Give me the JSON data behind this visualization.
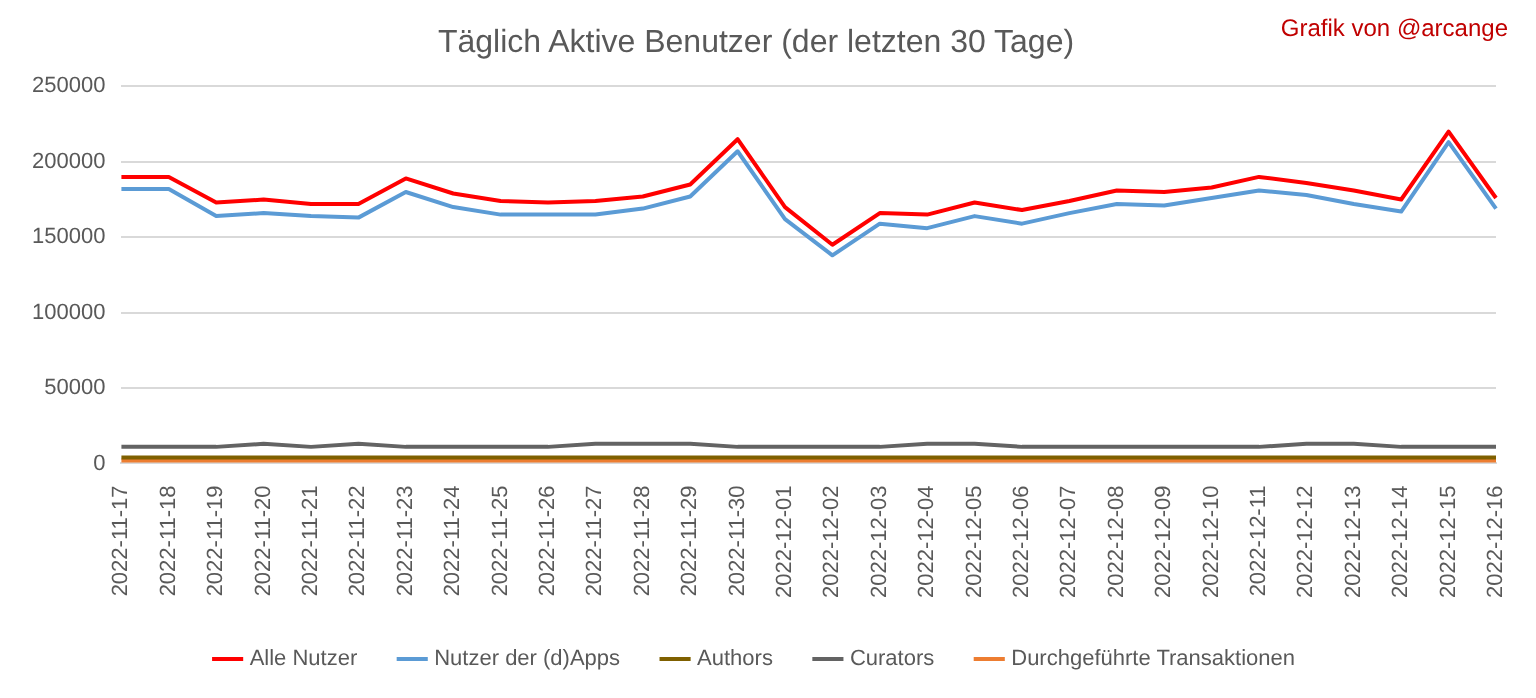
{
  "chart_data": {
    "type": "line",
    "title": "Täglich Aktive Benutzer (der letzten 30 Tage)",
    "annotations": [
      "Grafik von @arcange"
    ],
    "categories": [
      "2022-11-17",
      "2022-11-18",
      "2022-11-19",
      "2022-11-20",
      "2022-11-21",
      "2022-11-22",
      "2022-11-23",
      "2022-11-24",
      "2022-11-25",
      "2022-11-26",
      "2022-11-27",
      "2022-11-28",
      "2022-11-29",
      "2022-11-30",
      "2022-12-01",
      "2022-12-02",
      "2022-12-03",
      "2022-12-04",
      "2022-12-05",
      "2022-12-06",
      "2022-12-07",
      "2022-12-08",
      "2022-12-09",
      "2022-12-10",
      "2022-12-11",
      "2022-12-12",
      "2022-12-13",
      "2022-12-14",
      "2022-12-15",
      "2022-12-16"
    ],
    "series": [
      {
        "name": "Alle Nutzer",
        "color": "#ff0000",
        "values": [
          190000,
          190000,
          173000,
          175000,
          172000,
          172000,
          189000,
          179000,
          174000,
          173000,
          174000,
          177000,
          185000,
          215000,
          170000,
          145000,
          166000,
          165000,
          173000,
          168000,
          174000,
          181000,
          180000,
          183000,
          190000,
          186000,
          181000,
          175000,
          220000,
          176000
        ]
      },
      {
        "name": "Nutzer der (d)Apps",
        "color": "#5b9bd5",
        "values": [
          182000,
          182000,
          164000,
          166000,
          164000,
          163000,
          180000,
          170000,
          165000,
          165000,
          165000,
          169000,
          177000,
          207000,
          162000,
          138000,
          159000,
          156000,
          164000,
          159000,
          166000,
          172000,
          171000,
          176000,
          181000,
          178000,
          172000,
          167000,
          213000,
          169000
        ]
      },
      {
        "name": "Authors",
        "color": "#7f6000",
        "values": [
          4000,
          4000,
          4000,
          4000,
          4000,
          4000,
          4000,
          4000,
          4000,
          4000,
          4000,
          4000,
          4000,
          4000,
          4000,
          4000,
          4000,
          4000,
          4000,
          4000,
          4000,
          4000,
          4000,
          4000,
          4000,
          4000,
          4000,
          4000,
          4000,
          4000
        ]
      },
      {
        "name": "Curators",
        "color": "#636363",
        "values": [
          11000,
          11000,
          11000,
          13000,
          11000,
          13000,
          11000,
          11000,
          11000,
          11000,
          13000,
          13000,
          13000,
          11000,
          11000,
          11000,
          11000,
          13000,
          13000,
          11000,
          11000,
          11000,
          11000,
          11000,
          11000,
          13000,
          13000,
          11000,
          11000,
          11000
        ]
      },
      {
        "name": "Durchgeführte Transaktionen",
        "color": "#ed7d31",
        "values": [
          2000,
          2000,
          2000,
          2000,
          2000,
          2000,
          2000,
          2000,
          2000,
          2000,
          2000,
          2000,
          2000,
          2000,
          2000,
          2000,
          2000,
          2000,
          2000,
          2000,
          2000,
          2000,
          2000,
          2000,
          2000,
          2000,
          2000,
          2000,
          2000,
          2000
        ]
      }
    ],
    "ylim": [
      0,
      250000
    ],
    "yticks": [
      0,
      50000,
      100000,
      150000,
      200000,
      250000
    ],
    "grid": "y",
    "legend": "bottom",
    "marker": "none",
    "line_style": "solid"
  }
}
